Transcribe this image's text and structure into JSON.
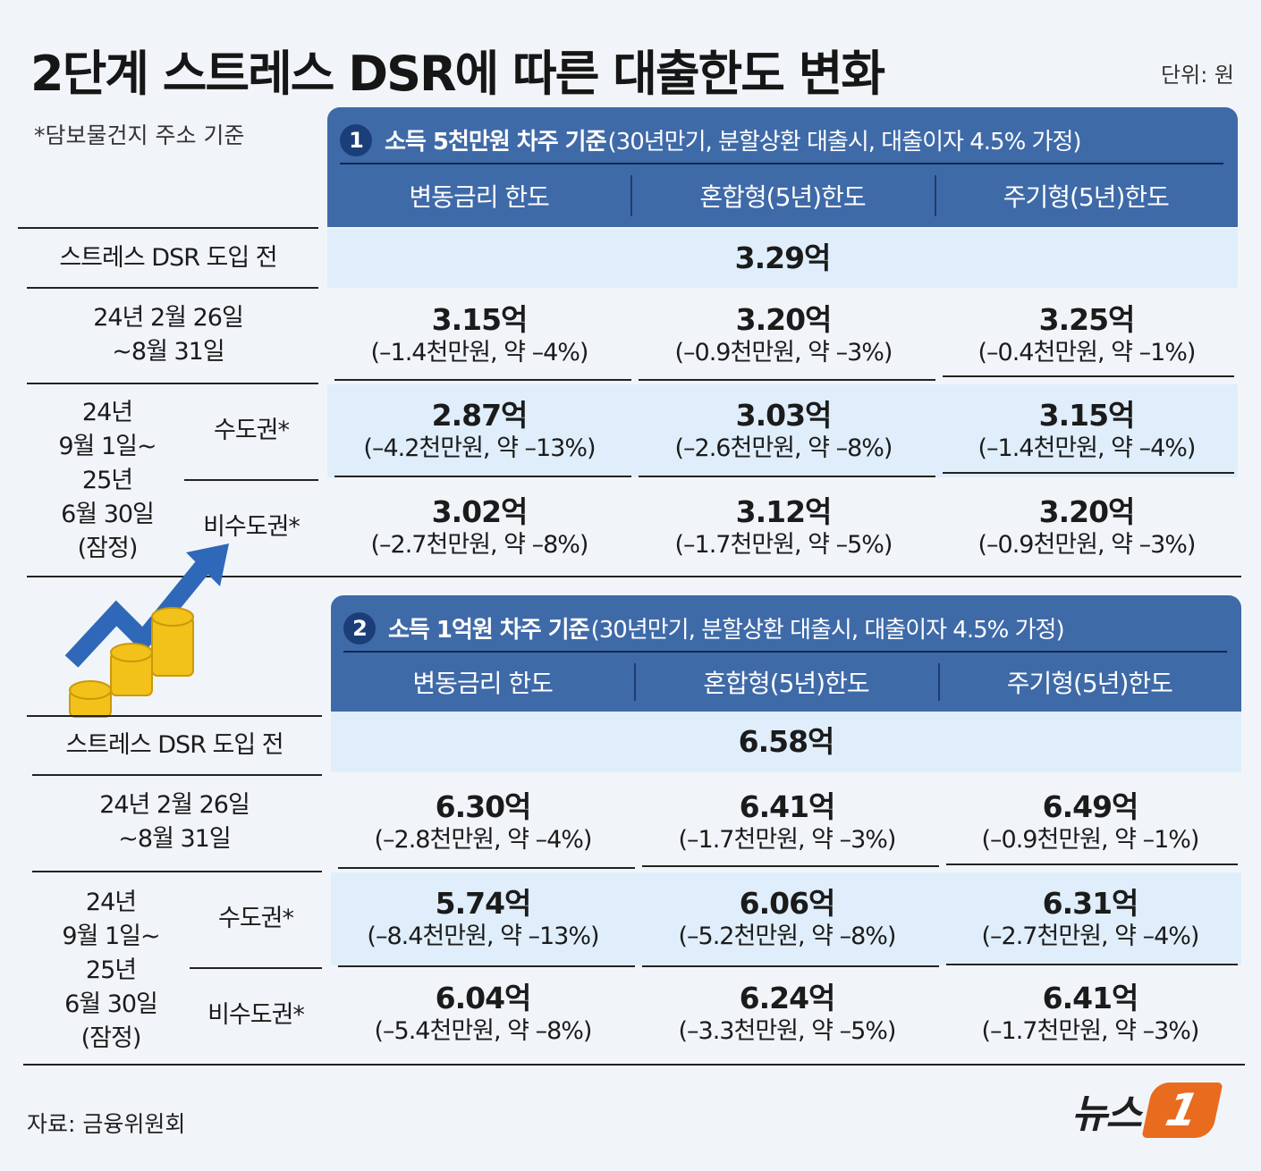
{
  "title": "2단계 스트레스 DSR에 따른 대출한도 변화",
  "unit": "단위: 원",
  "note": "*담보물건지 주소 기준",
  "row_labels": {
    "before": "스트레스 DSR 도입 전",
    "phase1": [
      "24년 2월 26일",
      "~8월 31일"
    ],
    "phase2": [
      "24년",
      "9월 1일~",
      "25년",
      "6월 30일",
      "(잠정)"
    ],
    "metro": "수도권*",
    "nonmetro": "비수도권*"
  },
  "columns": [
    "변동금리 한도",
    "혼합형(5년)한도",
    "주기형(5년)한도"
  ],
  "sections": [
    {
      "num": "1",
      "title_bold": "소득 5천만원 차주 기준",
      "title_rest": "(30년만기, 분할상환 대출시, 대출이자 4.5% 가정)",
      "before": "3.29억",
      "phase1": [
        {
          "v": "3.15억",
          "d": "(–1.4천만원, 약 –4%)"
        },
        {
          "v": "3.20억",
          "d": "(–0.9천만원, 약 –3%)"
        },
        {
          "v": "3.25억",
          "d": "(–0.4천만원, 약 –1%)"
        }
      ],
      "metro": [
        {
          "v": "2.87억",
          "d": "(–4.2천만원, 약 –13%)"
        },
        {
          "v": "3.03억",
          "d": "(–2.6천만원, 약 –8%)"
        },
        {
          "v": "3.15억",
          "d": "(–1.4천만원, 약 –4%)"
        }
      ],
      "nonmetro": [
        {
          "v": "3.02억",
          "d": "(–2.7천만원, 약 –8%)"
        },
        {
          "v": "3.12억",
          "d": "(–1.7천만원, 약 –5%)"
        },
        {
          "v": "3.20억",
          "d": "(–0.9천만원, 약 –3%)"
        }
      ]
    },
    {
      "num": "2",
      "title_bold": "소득 1억원 차주 기준",
      "title_rest": "(30년만기, 분할상환 대출시, 대출이자 4.5% 가정)",
      "before": "6.58억",
      "phase1": [
        {
          "v": "6.30억",
          "d": "(–2.8천만원, 약 –4%)"
        },
        {
          "v": "6.41억",
          "d": "(–1.7천만원, 약 –3%)"
        },
        {
          "v": "6.49억",
          "d": "(–0.9천만원, 약 –1%)"
        }
      ],
      "metro": [
        {
          "v": "5.74억",
          "d": "(–8.4천만원, 약 –13%)"
        },
        {
          "v": "6.06억",
          "d": "(–5.2천만원, 약 –8%)"
        },
        {
          "v": "6.31억",
          "d": "(–2.7천만원, 약 –4%)"
        }
      ],
      "nonmetro": [
        {
          "v": "6.04억",
          "d": "(–5.4천만원, 약 –8%)"
        },
        {
          "v": "6.24억",
          "d": "(–3.3천만원, 약 –5%)"
        },
        {
          "v": "6.41억",
          "d": "(–1.7천만원, 약 –3%)"
        }
      ]
    }
  ],
  "source": "자료: 금융위원회",
  "logo_text": "뉴스",
  "logo_badge": "1",
  "colors": {
    "header": "#3f6aa8",
    "shade": "#dfeefa",
    "logo": "#e96b1e"
  }
}
